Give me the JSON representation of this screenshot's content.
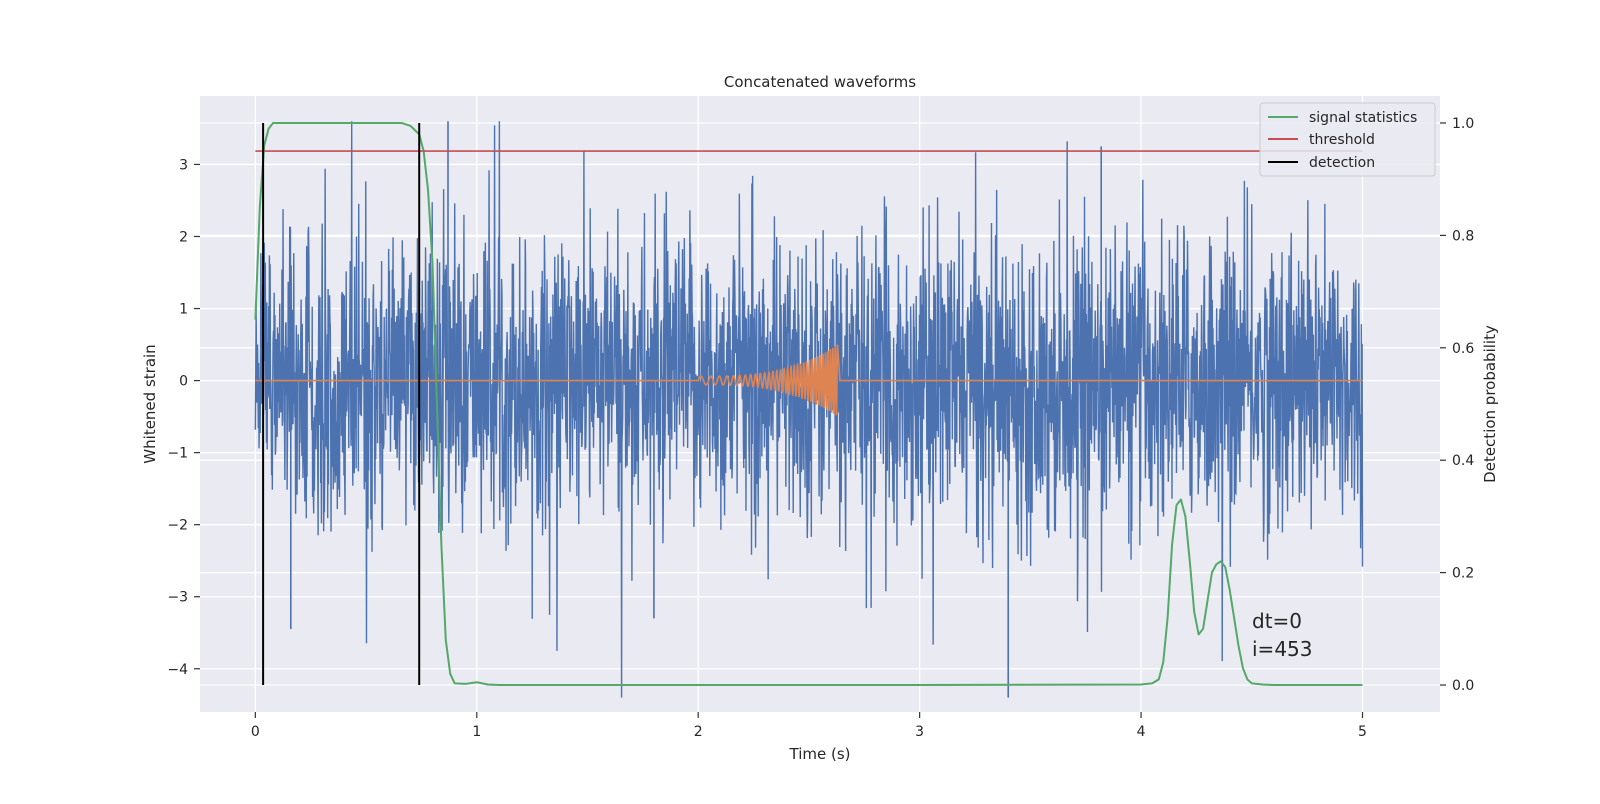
{
  "chart_data": {
    "type": "line",
    "title": "Concatenated waveforms",
    "xlabel": "Time (s)",
    "ylabel": "Whitened strain",
    "y2label": "Detection probability",
    "xlim": [
      -0.25,
      5.35
    ],
    "ylim": [
      -4.6,
      3.95
    ],
    "y2lim": [
      -0.048,
      1.048
    ],
    "xticks": [
      0,
      1,
      2,
      3,
      4,
      5
    ],
    "xtick_labels": [
      "0",
      "1",
      "2",
      "3",
      "4",
      "5"
    ],
    "yticks": [
      -4,
      -3,
      -2,
      -1,
      0,
      1,
      2,
      3
    ],
    "ytick_labels": [
      "−4",
      "−3",
      "−2",
      "−1",
      "0",
      "1",
      "2",
      "3"
    ],
    "y2ticks": [
      0.0,
      0.2,
      0.4,
      0.6,
      0.8,
      1.0
    ],
    "y2tick_labels": [
      "0.0",
      "0.2",
      "0.4",
      "0.6",
      "0.8",
      "1.0"
    ],
    "grid": true,
    "legend_position": "top-right",
    "annotation": [
      "dt=0",
      "i=453"
    ],
    "series": [
      {
        "name": "signal statistics",
        "axis": "right",
        "color": "#55a868",
        "x": [
          0.0,
          0.02,
          0.04,
          0.06,
          0.08,
          0.1,
          0.2,
          0.4,
          0.6,
          0.66,
          0.7,
          0.74,
          0.76,
          0.78,
          0.8,
          0.82,
          0.84,
          0.86,
          0.88,
          0.9,
          0.95,
          1.0,
          1.05,
          1.1,
          1.5,
          2.0,
          3.0,
          4.0,
          4.05,
          4.08,
          4.1,
          4.12,
          4.14,
          4.16,
          4.18,
          4.2,
          4.22,
          4.24,
          4.26,
          4.28,
          4.3,
          4.32,
          4.34,
          4.36,
          4.38,
          4.4,
          4.42,
          4.44,
          4.46,
          4.48,
          4.5,
          4.55,
          4.6,
          4.7,
          5.0
        ],
        "y": [
          0.65,
          0.85,
          0.96,
          0.99,
          1.0,
          1.0,
          1.0,
          1.0,
          1.0,
          1.0,
          0.995,
          0.98,
          0.95,
          0.88,
          0.75,
          0.5,
          0.25,
          0.08,
          0.02,
          0.003,
          0.002,
          0.005,
          0.001,
          0.0,
          0.0,
          0.0,
          0.0,
          0.001,
          0.003,
          0.01,
          0.04,
          0.12,
          0.25,
          0.32,
          0.33,
          0.3,
          0.22,
          0.13,
          0.09,
          0.1,
          0.15,
          0.2,
          0.215,
          0.22,
          0.21,
          0.17,
          0.12,
          0.07,
          0.03,
          0.01,
          0.003,
          0.001,
          0.0,
          0.0,
          0.0
        ]
      },
      {
        "name": "threshold",
        "axis": "right",
        "color": "#c44e52",
        "x": [
          0.0,
          5.0
        ],
        "y": [
          0.95,
          0.95
        ]
      },
      {
        "name": "detection",
        "axis": "right",
        "color": "#000000",
        "type": "vlines",
        "x": [
          0.035,
          0.74
        ],
        "ymin": 0.0,
        "ymax": 1.0
      },
      {
        "name": "",
        "axis": "left",
        "color": "#4c72b0",
        "type": "noise",
        "x_range": [
          0.0,
          5.0
        ],
        "typical_amplitude": 1.3,
        "max": 3.6,
        "min": -4.4
      },
      {
        "name": "",
        "axis": "left",
        "color": "#dd8452",
        "type": "chirp",
        "x_start": 2.0,
        "x_end": 2.63,
        "peak_amplitude": 0.5
      }
    ]
  }
}
